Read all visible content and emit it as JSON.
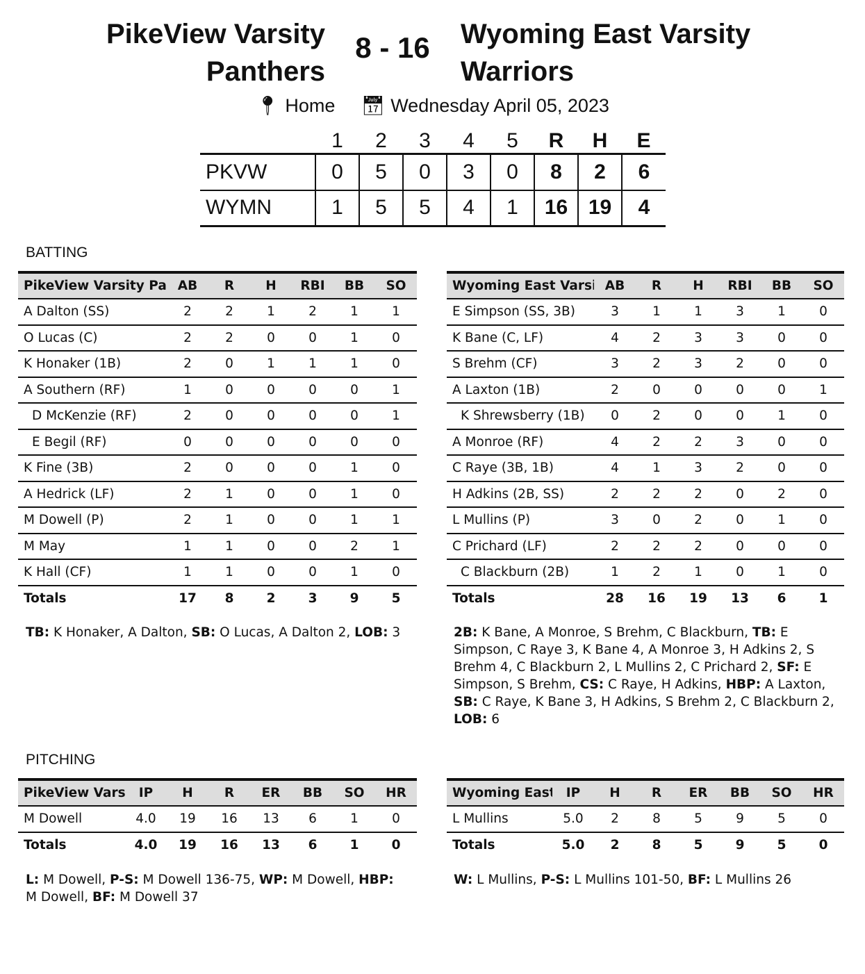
{
  "header": {
    "home_team": "PikeView Varsity Panthers",
    "away_team": "Wyoming East Varsity Warriors",
    "score": "8 - 16",
    "location": "Home",
    "date": "Wednesday April 05, 2023",
    "location_icon": "map-pin-icon",
    "date_icon": "calendar-icon"
  },
  "linescore": {
    "columns": [
      "1",
      "2",
      "3",
      "4",
      "5",
      "R",
      "H",
      "E"
    ],
    "rows": [
      {
        "team": "PKVW",
        "values": [
          "0",
          "5",
          "0",
          "3",
          "0",
          "8",
          "2",
          "6"
        ]
      },
      {
        "team": "WYMN",
        "values": [
          "1",
          "5",
          "5",
          "4",
          "1",
          "16",
          "19",
          "4"
        ]
      }
    ]
  },
  "batting": {
    "title": "BATTING",
    "home": {
      "header": [
        "PikeView Varsity Panthers",
        "AB",
        "R",
        "H",
        "RBI",
        "BB",
        "SO"
      ],
      "rows": [
        [
          "A Dalton (SS)",
          "2",
          "2",
          "1",
          "2",
          "1",
          "1"
        ],
        [
          "O Lucas (C)",
          "2",
          "2",
          "0",
          "0",
          "1",
          "0"
        ],
        [
          "K Honaker (1B)",
          "2",
          "0",
          "1",
          "1",
          "1",
          "0"
        ],
        [
          "A Southern (RF)",
          "1",
          "0",
          "0",
          "0",
          "0",
          "1"
        ],
        [
          "D McKenzie (RF)",
          "2",
          "0",
          "0",
          "0",
          "0",
          "1"
        ],
        [
          "E Begil (RF)",
          "0",
          "0",
          "0",
          "0",
          "0",
          "0"
        ],
        [
          "K Fine (3B)",
          "2",
          "0",
          "0",
          "0",
          "1",
          "0"
        ],
        [
          "A Hedrick (LF)",
          "2",
          "1",
          "0",
          "0",
          "1",
          "0"
        ],
        [
          "M Dowell (P)",
          "2",
          "1",
          "0",
          "0",
          "1",
          "1"
        ],
        [
          "M May",
          "1",
          "1",
          "0",
          "0",
          "2",
          "1"
        ],
        [
          "K Hall (CF)",
          "1",
          "1",
          "0",
          "0",
          "1",
          "0"
        ]
      ],
      "indented": [
        4,
        5
      ],
      "totals": [
        "Totals",
        "17",
        "8",
        "2",
        "3",
        "9",
        "5"
      ],
      "notes": [
        {
          "label": "TB:",
          "text": " K Honaker, A Dalton, "
        },
        {
          "label": "SB:",
          "text": " O Lucas, A Dalton 2, "
        },
        {
          "label": "LOB:",
          "text": " 3"
        }
      ]
    },
    "away": {
      "header": [
        "Wyoming East Varsity Warriors",
        "AB",
        "R",
        "H",
        "RBI",
        "BB",
        "SO"
      ],
      "rows": [
        [
          "E Simpson (SS, 3B)",
          "3",
          "1",
          "1",
          "3",
          "1",
          "0"
        ],
        [
          "K Bane (C, LF)",
          "4",
          "2",
          "3",
          "3",
          "0",
          "0"
        ],
        [
          "S Brehm (CF)",
          "3",
          "2",
          "3",
          "2",
          "0",
          "0"
        ],
        [
          "A Laxton (1B)",
          "2",
          "0",
          "0",
          "0",
          "0",
          "1"
        ],
        [
          "K Shrewsberry (1B)",
          "0",
          "2",
          "0",
          "0",
          "1",
          "0"
        ],
        [
          "A Monroe (RF)",
          "4",
          "2",
          "2",
          "3",
          "0",
          "0"
        ],
        [
          "C Raye (3B, 1B)",
          "4",
          "1",
          "3",
          "2",
          "0",
          "0"
        ],
        [
          "H Adkins (2B, SS)",
          "2",
          "2",
          "2",
          "0",
          "2",
          "0"
        ],
        [
          "L Mullins (P)",
          "3",
          "0",
          "2",
          "0",
          "1",
          "0"
        ],
        [
          "C Prichard (LF)",
          "2",
          "2",
          "2",
          "0",
          "0",
          "0"
        ],
        [
          "C Blackburn (2B)",
          "1",
          "2",
          "1",
          "0",
          "1",
          "0"
        ]
      ],
      "indented": [
        4,
        10
      ],
      "totals": [
        "Totals",
        "28",
        "16",
        "19",
        "13",
        "6",
        "1"
      ],
      "notes": [
        {
          "label": "2B:",
          "text": " K Bane, A Monroe, S Brehm, C Blackburn, "
        },
        {
          "label": "TB:",
          "text": " E Simpson, C Raye 3, K Bane 4, A Monroe 3, H Adkins 2, S Brehm 4, C Blackburn 2, L Mullins 2, C Prichard 2, "
        },
        {
          "label": "SF:",
          "text": " E Simpson, S Brehm, "
        },
        {
          "label": "CS:",
          "text": " C Raye, H Adkins, "
        },
        {
          "label": "HBP:",
          "text": " A Laxton, "
        },
        {
          "label": "SB:",
          "text": " C Raye, K Bane 3, H Adkins, S Brehm 2, C Blackburn 2, "
        },
        {
          "label": "LOB:",
          "text": " 6"
        }
      ]
    }
  },
  "pitching": {
    "title": "PITCHING",
    "home": {
      "header": [
        "PikeView Varsity Panthers",
        "IP",
        "H",
        "R",
        "ER",
        "BB",
        "SO",
        "HR"
      ],
      "rows": [
        [
          "M Dowell",
          "4.0",
          "19",
          "16",
          "13",
          "6",
          "1",
          "0"
        ]
      ],
      "indented": [],
      "totals": [
        "Totals",
        "4.0",
        "19",
        "16",
        "13",
        "6",
        "1",
        "0"
      ],
      "notes": [
        {
          "label": "L:",
          "text": " M Dowell, "
        },
        {
          "label": "P-S:",
          "text": " M Dowell 136-75, "
        },
        {
          "label": "WP:",
          "text": " M Dowell, "
        },
        {
          "label": "HBP:",
          "text": " M Dowell, "
        },
        {
          "label": "BF:",
          "text": " M Dowell 37"
        }
      ]
    },
    "away": {
      "header": [
        "Wyoming East Varsity Warriors",
        "IP",
        "H",
        "R",
        "ER",
        "BB",
        "SO",
        "HR"
      ],
      "rows": [
        [
          "L Mullins",
          "5.0",
          "2",
          "8",
          "5",
          "9",
          "5",
          "0"
        ]
      ],
      "indented": [],
      "totals": [
        "Totals",
        "5.0",
        "2",
        "8",
        "5",
        "9",
        "5",
        "0"
      ],
      "notes": [
        {
          "label": "W:",
          "text": " L Mullins, "
        },
        {
          "label": "P-S:",
          "text": " L Mullins 101-50, "
        },
        {
          "label": "BF:",
          "text": " L Mullins 26"
        }
      ]
    }
  }
}
